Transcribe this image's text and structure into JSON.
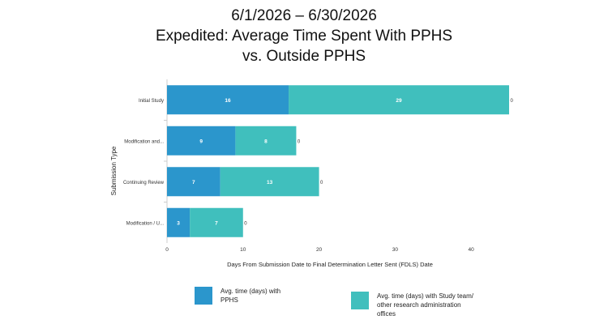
{
  "title": {
    "line1": "6/1/2026 – 6/30/2026",
    "line2": "Expedited: Average Time Spent With PPHS",
    "line3": "vs. Outside PPHS"
  },
  "colors": {
    "pphs": "#2b96cc",
    "outside": "#40bfbd",
    "axis": "#cccccc"
  },
  "chart_data": {
    "type": "bar",
    "orientation": "horizontal",
    "stacked": true,
    "ylabel": "Submission Type",
    "xlabel": "Days From Submission Date to Final Determination Letter Sent (FDLS) Date",
    "xlim": [
      0,
      45
    ],
    "xticks": [
      0,
      10,
      20,
      30,
      40
    ],
    "categories": [
      "Initial Study",
      "Modification and...",
      "Continuing Review",
      "Modification / U..."
    ],
    "series": [
      {
        "name": "Avg. time (days) with PPHS",
        "values": [
          16,
          9,
          7,
          3
        ]
      },
      {
        "name": "Avg. time (days) with Study team/ other research administration offices",
        "values": [
          29,
          8,
          13,
          7
        ]
      }
    ],
    "end_labels": [
      "0",
      "0",
      "0",
      "0"
    ],
    "grid": false,
    "legend": "bottom"
  }
}
